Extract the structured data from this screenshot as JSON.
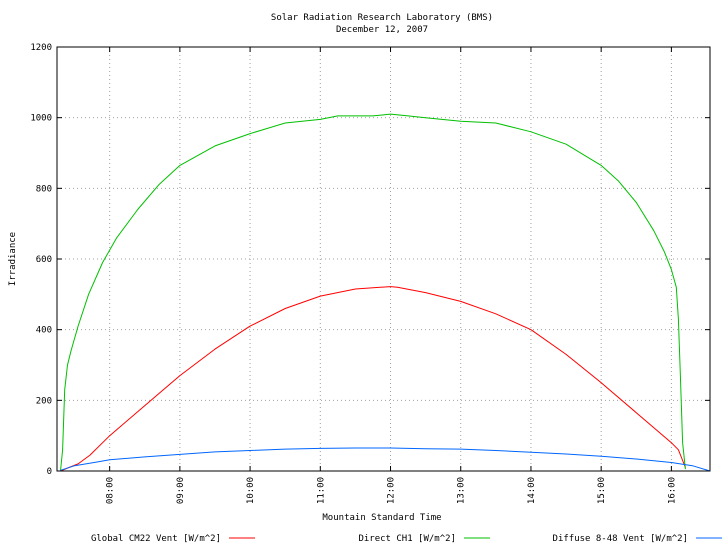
{
  "chart_data": {
    "type": "line",
    "title": "Solar Radiation Research Laboratory (BMS)",
    "subtitle": "December 12, 2007",
    "xlabel": "Mountain Standard Time",
    "ylabel": "Irradiance",
    "xlim": [
      7.25,
      16.55
    ],
    "ylim": [
      0,
      1200
    ],
    "x_ticks": [
      {
        "value": 8,
        "label": "08:00"
      },
      {
        "value": 9,
        "label": "09:00"
      },
      {
        "value": 10,
        "label": "10:00"
      },
      {
        "value": 11,
        "label": "11:00"
      },
      {
        "value": 12,
        "label": "12:00"
      },
      {
        "value": 13,
        "label": "13:00"
      },
      {
        "value": 14,
        "label": "14:00"
      },
      {
        "value": 15,
        "label": "15:00"
      },
      {
        "value": 16,
        "label": "16:00"
      }
    ],
    "y_ticks": [
      {
        "value": 0,
        "label": "0"
      },
      {
        "value": 200,
        "label": "200"
      },
      {
        "value": 400,
        "label": "400"
      },
      {
        "value": 600,
        "label": "600"
      },
      {
        "value": 800,
        "label": "800"
      },
      {
        "value": 1000,
        "label": "1000"
      },
      {
        "value": 1200,
        "label": "1200"
      }
    ],
    "grid": true,
    "legend_position": "bottom",
    "series": [
      {
        "name": "Global CM22 Vent [W/m^2]",
        "color": "#ff0000",
        "x": [
          7.3,
          7.42,
          7.55,
          7.72,
          8.0,
          8.5,
          9.0,
          9.5,
          10.0,
          10.5,
          11.0,
          11.5,
          12.0,
          12.1,
          12.5,
          13.0,
          13.5,
          14.0,
          14.5,
          15.0,
          15.5,
          16.0,
          16.1,
          16.2
        ],
        "y": [
          0,
          10,
          20,
          45,
          100,
          185,
          270,
          345,
          410,
          460,
          495,
          515,
          522,
          520,
          505,
          480,
          445,
          400,
          330,
          250,
          165,
          80,
          60,
          10
        ]
      },
      {
        "name": "Direct CH1 [W/m^2]",
        "color": "#00c000",
        "x": [
          7.3,
          7.33,
          7.36,
          7.4,
          7.45,
          7.55,
          7.7,
          7.9,
          8.1,
          8.4,
          8.7,
          9.0,
          9.5,
          10.0,
          10.5,
          11.0,
          11.25,
          11.5,
          11.75,
          12.0,
          12.25,
          12.5,
          13.0,
          13.5,
          14.0,
          14.5,
          15.0,
          15.25,
          15.5,
          15.75,
          15.9,
          16.0,
          16.07,
          16.1,
          16.13,
          16.16,
          16.2
        ],
        "y": [
          0,
          60,
          230,
          300,
          340,
          410,
          500,
          590,
          660,
          740,
          810,
          865,
          920,
          955,
          985,
          995,
          1005,
          1005,
          1005,
          1010,
          1005,
          1000,
          990,
          985,
          960,
          925,
          865,
          820,
          760,
          680,
          620,
          570,
          520,
          430,
          260,
          80,
          5
        ]
      },
      {
        "name": "Diffuse 8-48 Vent [W/m^2]",
        "color": "#0066ff",
        "x": [
          7.3,
          7.5,
          7.8,
          8.0,
          8.5,
          9.0,
          9.5,
          10.0,
          10.5,
          11.0,
          11.5,
          12.0,
          12.5,
          13.0,
          13.5,
          14.0,
          14.5,
          15.0,
          15.5,
          16.0,
          16.3,
          16.55
        ],
        "y": [
          2,
          15,
          25,
          32,
          40,
          47,
          54,
          58,
          62,
          64,
          65,
          65,
          63,
          62,
          58,
          53,
          48,
          42,
          34,
          24,
          15,
          0
        ]
      }
    ]
  }
}
